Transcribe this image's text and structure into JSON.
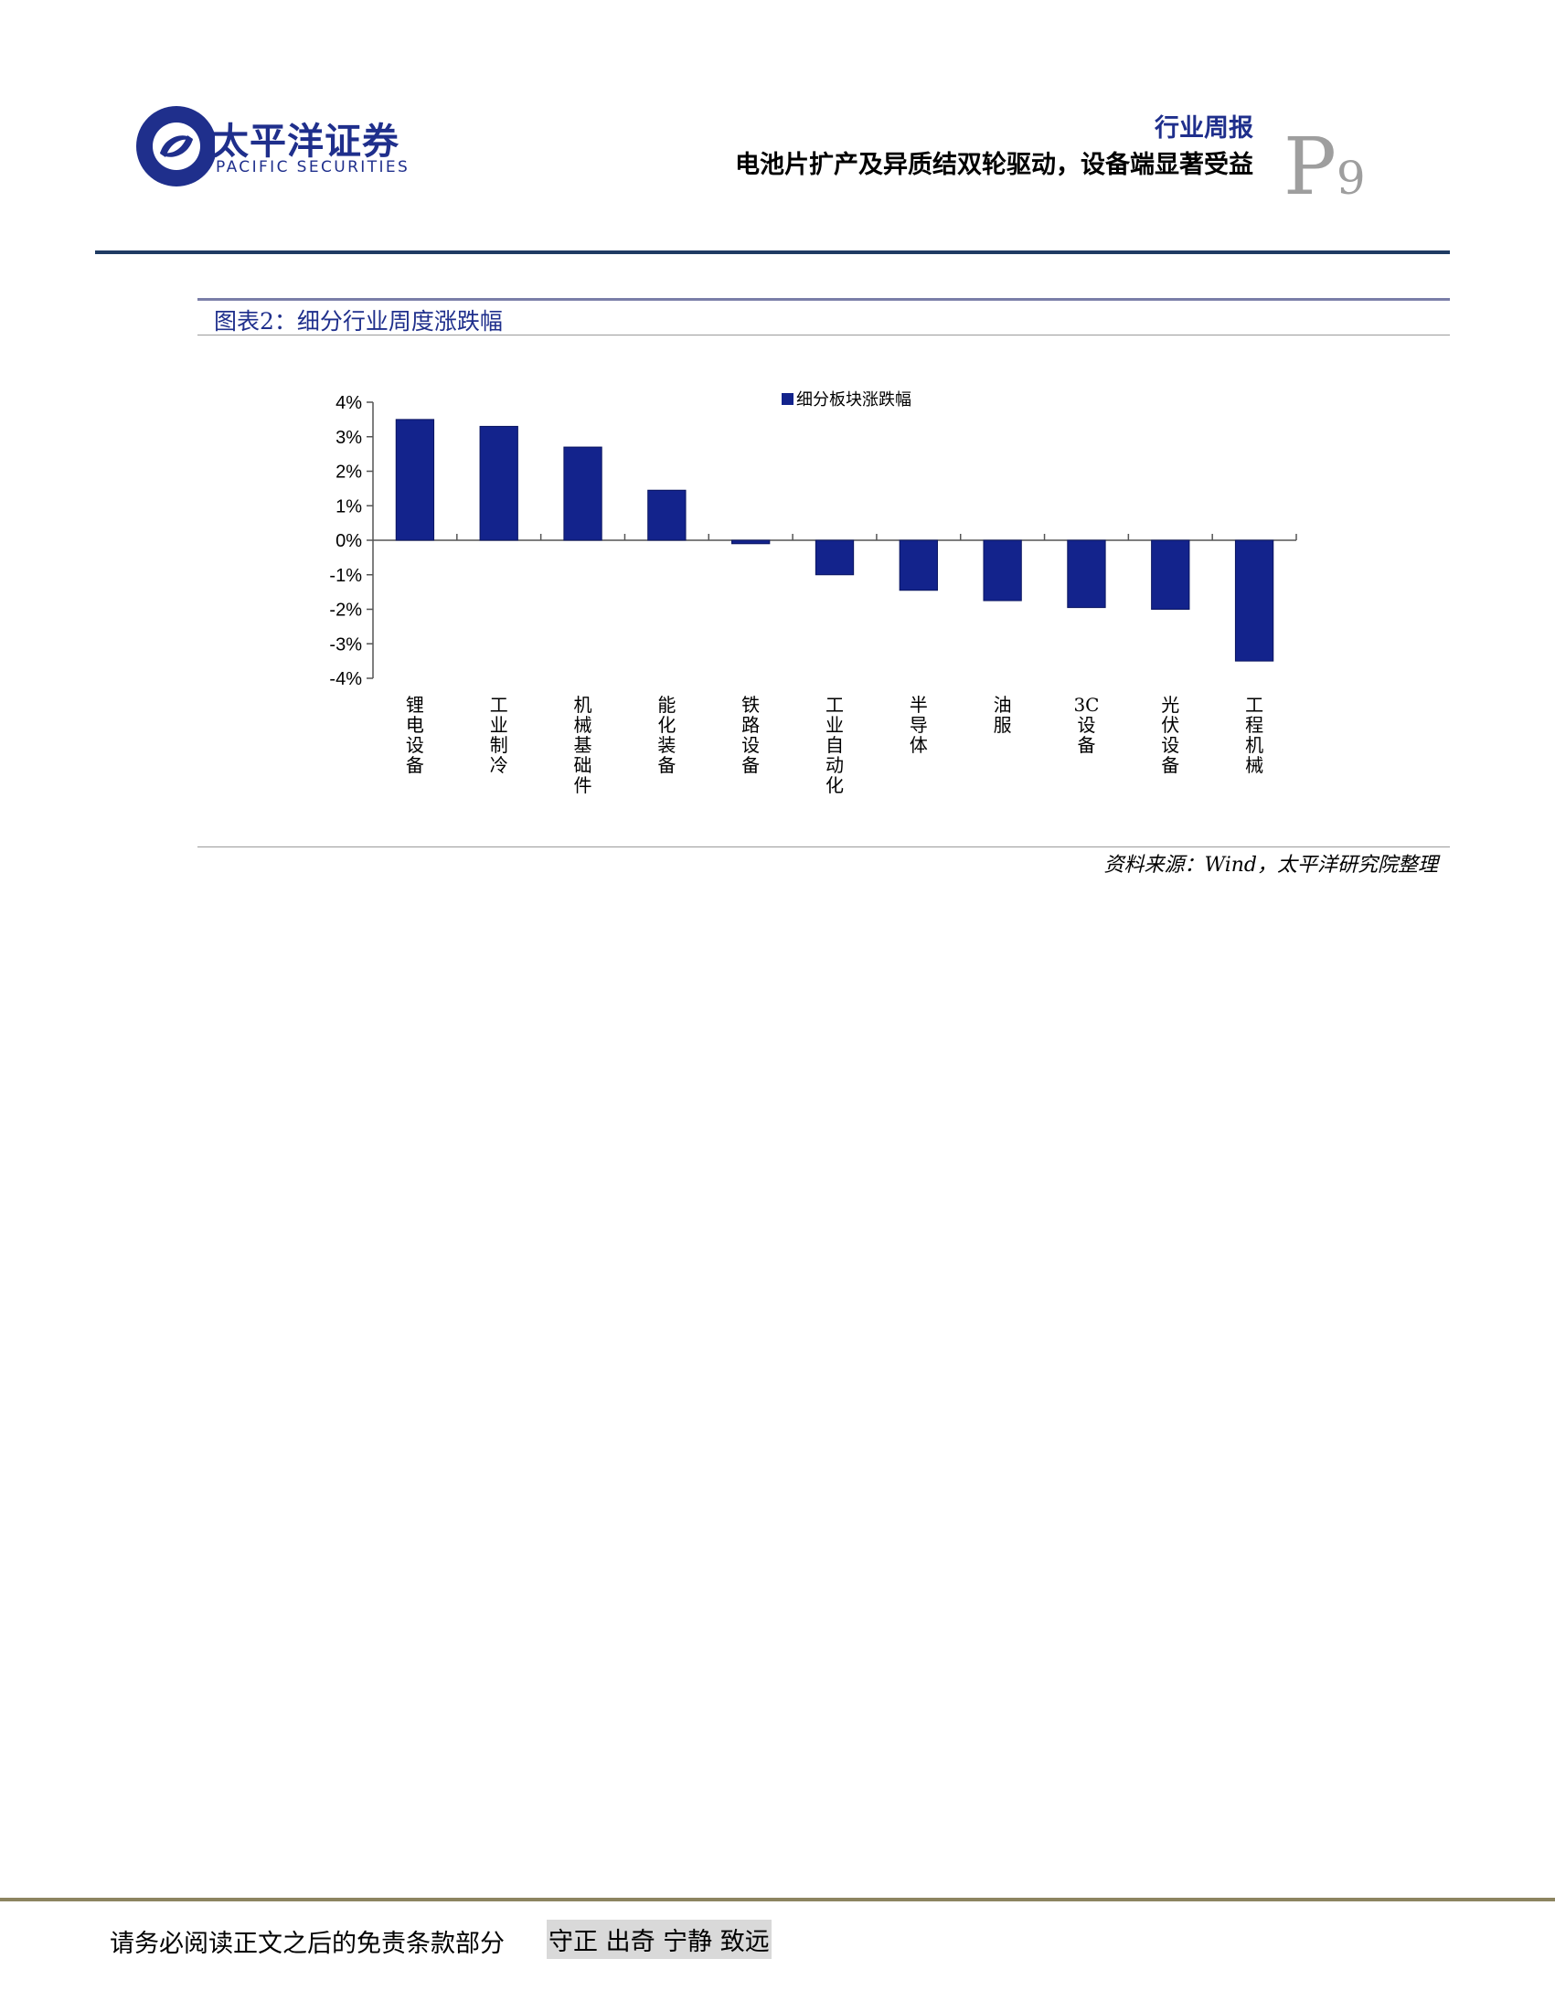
{
  "header": {
    "brand_cn": "太平洋证券",
    "brand_en": "PACIFIC SECURITIES",
    "report_type": "行业周报",
    "report_title": "电池片扩产及异质结双轮驱动，设备端显著受益",
    "page_letter": "P",
    "page_number": "9",
    "colors": {
      "brand_blue": "#1f2f8c",
      "brand_red": "#e3262e",
      "rule": "#1f3b63"
    }
  },
  "figure": {
    "title": "图表2：细分行业周度涨跌幅",
    "source": "资料来源：Wind，太平洋研究院整理"
  },
  "chart_data": {
    "type": "bar",
    "legend": "细分板块涨跌幅",
    "legend_position": "top-center",
    "bar_color": "#13238c",
    "categories": [
      "锂电设备",
      "工业制冷",
      "机械基础件",
      "能化装备",
      "铁路设备",
      "工业自动化",
      "半导体",
      "油服",
      "3C设备",
      "光伏设备",
      "工程机械"
    ],
    "values": [
      3.5,
      3.3,
      2.7,
      1.45,
      -0.1,
      -1.0,
      -1.45,
      -1.75,
      -1.95,
      -2.0,
      -3.5
    ],
    "ylim": [
      -4,
      4
    ],
    "yticks": [
      4,
      3,
      2,
      1,
      0,
      -1,
      -2,
      -3,
      -4
    ],
    "ytick_labels": [
      "4%",
      "3%",
      "2%",
      "1%",
      "0%",
      "-1%",
      "-2%",
      "-3%",
      "-4%"
    ],
    "grid": false
  },
  "footer": {
    "disclaimer": "请务必阅读正文之后的免责条款部分",
    "motto": "守正 出奇 宁静 致远"
  }
}
